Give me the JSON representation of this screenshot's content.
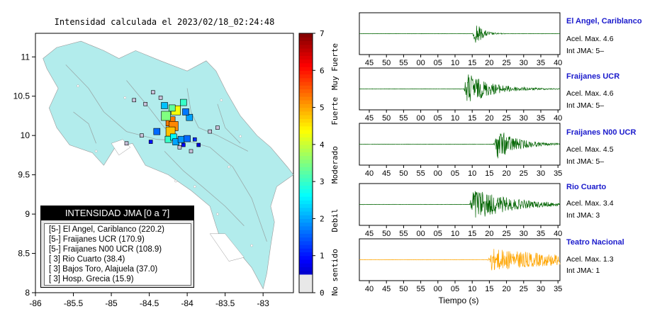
{
  "title": "Intensidad calculada el 2023/02/18_02:24:48",
  "map": {
    "x_ticks": [
      "-86",
      "-85.5",
      "-85",
      "-84.5",
      "-84",
      "-83.5",
      "-83"
    ],
    "y_ticks": [
      "11",
      "10.5",
      "10",
      "9.5",
      "9",
      "8.5",
      "8"
    ],
    "land_color": "#b2ecec",
    "sea_color": "#ffffff"
  },
  "colorbar": {
    "ticks": [
      "7",
      "6",
      "5",
      "4",
      "3",
      "2",
      "1",
      "0"
    ],
    "labels": [
      "Muy Fuerte",
      "Fuerte",
      "Moderado",
      "Debil",
      "No sentido"
    ]
  },
  "legend": {
    "title": "INTENSIDAD JMA [0 a 7]",
    "rows": [
      "[5-] El Angel, Cariblanco (220.2)",
      "[5-] Fraijanes UCR (170.9)",
      "[5-] Fraijanes N00 UCR (108.9)",
      "[ 3] Rio Cuarto (38.4)",
      "[ 3] Bajos Toro, Alajuela (37.0)",
      "[ 3] Hosp. Grecia (15.9)"
    ]
  },
  "stations": [
    {
      "name": "El Angel, Cariblanco",
      "acel": "Acel. Max. 4.6",
      "jma": "Int JMA: 5–",
      "ticks": [
        "45",
        "50",
        "55",
        "00",
        "05",
        "10",
        "15",
        "20",
        "25",
        "30",
        "35",
        "40"
      ],
      "color": "#006400"
    },
    {
      "name": "Fraijanes UCR",
      "acel": "Acel. Max. 4.6",
      "jma": "Int JMA: 5–",
      "ticks": [
        "45",
        "50",
        "55",
        "00",
        "05",
        "10",
        "15",
        "20",
        "25",
        "30",
        "35",
        "40"
      ],
      "color": "#006400"
    },
    {
      "name": "Fraijanes N00 UCR",
      "acel": "Acel. Max. 4.5",
      "jma": "Int JMA: 5–",
      "ticks": [
        "40",
        "45",
        "50",
        "55",
        "00",
        "05",
        "10",
        "15",
        "20",
        "25",
        "30",
        "35"
      ],
      "color": "#006400"
    },
    {
      "name": "Rio Cuarto",
      "acel": "Acel. Max. 3.4",
      "jma": "Int JMA: 3",
      "ticks": [
        "45",
        "50",
        "55",
        "00",
        "05",
        "10",
        "15",
        "20",
        "25",
        "30",
        "35",
        "40"
      ],
      "color": "#006400"
    },
    {
      "name": "Teatro Nacional",
      "acel": "Acel. Max. 1.3",
      "jma": "Int JMA: 1",
      "ticks": [
        "40",
        "45",
        "50",
        "55",
        "00",
        "05",
        "10",
        "15",
        "20",
        "25",
        "30",
        "35"
      ],
      "color": "#ffa500"
    }
  ],
  "time_xlabel": "Tiempo (s)",
  "chart_data": [
    {
      "type": "heatmap",
      "title": "Intensidad calculada el 2023/02/18_02:24:48",
      "xlim": [
        -86,
        -82.6
      ],
      "ylim": [
        8,
        11.3
      ],
      "colorbar_range": [
        0,
        7
      ],
      "intensity_cells": [
        {
          "lon": -84.22,
          "lat": 10.18,
          "value": 5.3
        },
        {
          "lon": -84.18,
          "lat": 10.12,
          "value": 5.2
        },
        {
          "lon": -84.22,
          "lat": 10.05,
          "value": 4.8
        },
        {
          "lon": -84.15,
          "lat": 10.32,
          "value": 4.3
        },
        {
          "lon": -84.28,
          "lat": 10.25,
          "value": 3.5
        },
        {
          "lon": -84.2,
          "lat": 10.35,
          "value": 3.3
        },
        {
          "lon": -84.05,
          "lat": 10.42,
          "value": 3.0
        },
        {
          "lon": -84.25,
          "lat": 9.95,
          "value": 3.0
        },
        {
          "lon": -84.18,
          "lat": 9.98,
          "value": 2.6
        },
        {
          "lon": -84.3,
          "lat": 10.38,
          "value": 2.2
        },
        {
          "lon": -83.97,
          "lat": 10.23,
          "value": 2.0
        },
        {
          "lon": -84.15,
          "lat": 9.92,
          "value": 2.0
        },
        {
          "lon": -84.08,
          "lat": 9.95,
          "value": 1.9
        },
        {
          "lon": -84.02,
          "lat": 10.3,
          "value": 1.7
        },
        {
          "lon": -84.4,
          "lat": 10.05,
          "value": 1.6
        },
        {
          "lon": -84.0,
          "lat": 9.96,
          "value": 1.6
        },
        {
          "lon": -83.9,
          "lat": 9.95,
          "value": 1.2
        },
        {
          "lon": -84.48,
          "lat": 9.92,
          "value": 1.0
        },
        {
          "lon": -84.05,
          "lat": 9.88,
          "value": 0.9
        },
        {
          "lon": -83.85,
          "lat": 9.88,
          "value": 0.6
        },
        {
          "lon": -84.7,
          "lat": 10.45,
          "value": 0.3
        },
        {
          "lon": -84.45,
          "lat": 10.55,
          "value": 0.3
        },
        {
          "lon": -84.55,
          "lat": 10.4,
          "value": 0.3
        },
        {
          "lon": -83.7,
          "lat": 10.05,
          "value": 0.3
        },
        {
          "lon": -84.6,
          "lat": 10.0,
          "value": 0.3
        },
        {
          "lon": -83.95,
          "lat": 9.8,
          "value": 0.3
        },
        {
          "lon": -84.1,
          "lat": 9.85,
          "value": 0.3
        },
        {
          "lon": -84.35,
          "lat": 10.48,
          "value": 0.3
        },
        {
          "lon": -83.6,
          "lat": 10.1,
          "value": 0.3
        },
        {
          "lon": -84.8,
          "lat": 9.9,
          "value": 0.3
        }
      ]
    },
    {
      "type": "line",
      "series": [
        {
          "name": "El Angel, Cariblanco",
          "onset": 0.565,
          "peak": 0.72,
          "decay": 0.035
        },
        {
          "name": "Fraijanes UCR",
          "onset": 0.52,
          "peak": 0.72,
          "decay": 0.12
        },
        {
          "name": "Fraijanes N00 UCR",
          "onset": 0.67,
          "peak": 0.72,
          "decay": 0.1
        },
        {
          "name": "Rio Cuarto",
          "onset": 0.55,
          "peak": 0.72,
          "decay": 0.18
        },
        {
          "name": "Teatro Nacional",
          "onset": 0.64,
          "peak": 0.45,
          "decay": 0.45
        }
      ],
      "xlabel": "Tiempo (s)"
    }
  ]
}
